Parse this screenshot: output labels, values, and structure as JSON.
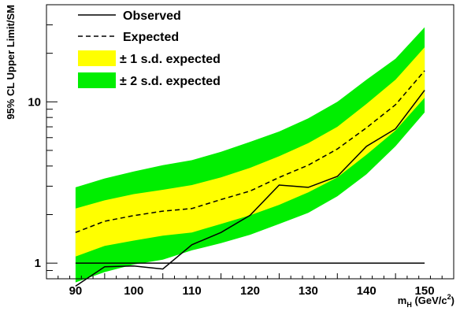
{
  "chart_data": {
    "type": "line",
    "y_scale": "log",
    "xlim": [
      85,
      155
    ],
    "ylim": [
      0.8,
      40
    ],
    "xlabel": {
      "main": "m",
      "sub": "H",
      "unit_pre": " (GeV/c",
      "unit_sup": "2",
      "unit_post": ")"
    },
    "ylabel": "95% CL Upper Limit/SM",
    "x_ticks": [
      90,
      100,
      110,
      120,
      130,
      140,
      150
    ],
    "y_ticks": [
      1,
      10
    ],
    "x": [
      90,
      95,
      100,
      105,
      110,
      115,
      120,
      125,
      130,
      135,
      140,
      145,
      150
    ],
    "series": [
      {
        "name": "Observed",
        "style": "solid",
        "values": [
          0.72,
          0.95,
          0.96,
          0.92,
          1.3,
          1.55,
          1.98,
          3.05,
          2.95,
          3.45,
          5.3,
          6.8,
          11.8
        ]
      },
      {
        "name": "Expected",
        "style": "dashed",
        "values": [
          1.55,
          1.82,
          1.97,
          2.1,
          2.18,
          2.48,
          2.8,
          3.4,
          4.05,
          5.1,
          6.9,
          9.6,
          15.6
        ]
      }
    ],
    "bands": [
      {
        "name": "± 2 s.d. expected",
        "color": "#00ee00",
        "lower": [
          0.76,
          0.88,
          0.98,
          1.05,
          1.2,
          1.33,
          1.5,
          1.75,
          2.05,
          2.6,
          3.55,
          5.3,
          8.6
        ],
        "upper": [
          2.95,
          3.35,
          3.7,
          4.05,
          4.35,
          4.9,
          5.65,
          6.55,
          7.9,
          10.0,
          13.7,
          18.5,
          29.0
        ]
      },
      {
        "name": "± 1 s.d. expected",
        "color": "#ffff00",
        "lower": [
          1.1,
          1.28,
          1.38,
          1.48,
          1.55,
          1.75,
          1.98,
          2.3,
          2.75,
          3.4,
          4.7,
          6.65,
          10.6
        ],
        "upper": [
          2.18,
          2.45,
          2.68,
          2.85,
          3.05,
          3.4,
          3.9,
          4.6,
          5.55,
          7.0,
          9.7,
          13.7,
          21.8
        ]
      }
    ],
    "reference_line": {
      "y": 1,
      "x_range": [
        90,
        150
      ]
    },
    "legend": {
      "position": "top-left",
      "entries": [
        {
          "label": "Observed",
          "kind": "solid-line"
        },
        {
          "label": "Expected",
          "kind": "dashed-line"
        },
        {
          "label": "± 1 s.d. expected",
          "kind": "box",
          "color": "#ffff00"
        },
        {
          "label": "± 2 s.d. expected",
          "kind": "box",
          "color": "#00ee00"
        }
      ]
    }
  }
}
